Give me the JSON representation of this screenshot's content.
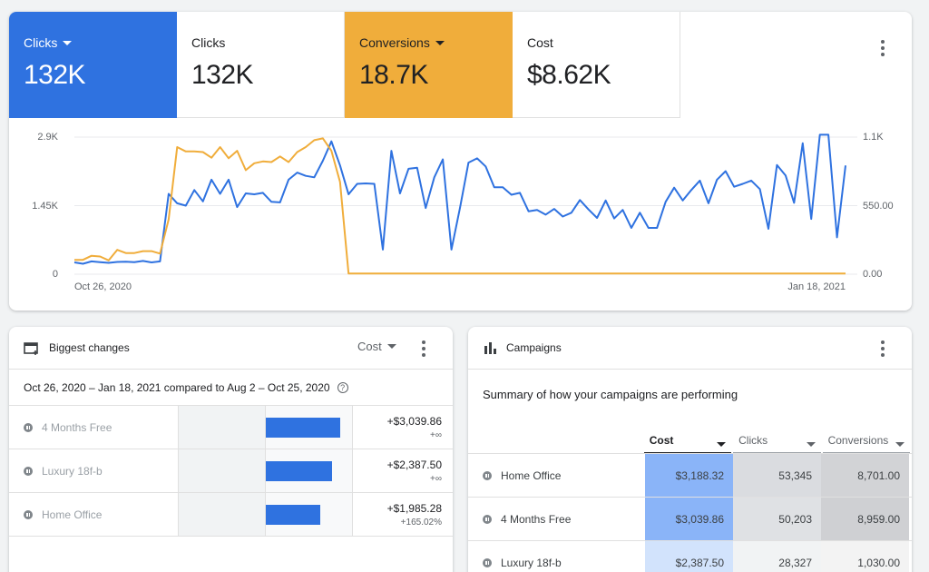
{
  "tiles": [
    {
      "label": "Clicks",
      "value": "132K",
      "dropdown": true,
      "style": "blue"
    },
    {
      "label": "Clicks",
      "value": "132K",
      "dropdown": false,
      "style": "plain"
    },
    {
      "label": "Conversions",
      "value": "18.7K",
      "dropdown": true,
      "style": "yellow"
    },
    {
      "label": "Cost",
      "value": "$8.62K",
      "dropdown": false,
      "style": "plain"
    }
  ],
  "colors": {
    "blue": "#2f72e0",
    "yellow": "#f0ad3b"
  },
  "chart_data": {
    "type": "line",
    "xlabels": [
      "Oct 26, 2020",
      "Jan 18, 2021"
    ],
    "y_left_ticks": [
      "2.9K",
      "1.45K",
      "0"
    ],
    "y_right_ticks": [
      "1.1K",
      "550.00",
      "0.00"
    ],
    "ylim_left": [
      0,
      2900
    ],
    "ylim_right": [
      0,
      1100
    ],
    "grid": true,
    "series": [
      {
        "color": "#2f72e0",
        "axis": "left",
        "values": [
          250,
          220,
          270,
          255,
          240,
          260,
          265,
          255,
          280,
          250,
          270,
          1700,
          1500,
          1450,
          1780,
          1540,
          2000,
          1700,
          2000,
          1420,
          1710,
          1690,
          1720,
          1530,
          1520,
          2000,
          2150,
          2080,
          2050,
          2400,
          2810,
          2300,
          1690,
          1910,
          1920,
          1910,
          520,
          2610,
          1710,
          2230,
          2250,
          1400,
          2050,
          2430,
          520,
          1400,
          2360,
          2450,
          2280,
          1840,
          1840,
          1680,
          1720,
          1330,
          1360,
          1260,
          1380,
          1220,
          1300,
          1570,
          1370,
          1190,
          1560,
          1180,
          1360,
          980,
          1300,
          980,
          980,
          1530,
          1830,
          1560,
          1780,
          1980,
          1500,
          2000,
          2180,
          1850,
          1910,
          1980,
          1800,
          960,
          2310,
          2090,
          1510,
          2770,
          1170,
          2950,
          2950,
          780,
          2300
        ]
      },
      {
        "color": "#f0ad3b",
        "axis": "right",
        "values": [
          115,
          115,
          148,
          142,
          111,
          195,
          170,
          170,
          185,
          185,
          165,
          440,
          1020,
          985,
          985,
          980,
          935,
          1020,
          930,
          990,
          835,
          890,
          905,
          900,
          945,
          900,
          980,
          1020,
          1075,
          1090,
          990,
          740,
          5,
          5,
          5,
          5,
          5,
          5,
          5,
          5,
          5,
          5,
          5,
          5,
          5,
          5,
          5,
          5,
          5,
          5,
          5,
          5,
          5,
          5,
          5,
          5,
          5,
          5,
          5,
          5,
          5,
          5,
          5,
          5,
          5,
          5,
          5,
          5,
          5,
          5,
          5,
          5,
          5,
          5,
          5,
          5,
          5,
          5,
          5,
          5,
          5,
          5,
          5,
          5,
          5,
          5,
          5,
          5,
          5,
          5,
          5
        ]
      }
    ]
  },
  "biggest_changes": {
    "title": "Biggest changes",
    "sort_label": "Cost",
    "date_range": "Oct 26, 2020 – Jan 18, 2021 compared to Aug 2 – Oct 25, 2020",
    "help_glyph": "?",
    "rows": [
      {
        "name": "4 Months Free",
        "change": "+$3,039.86",
        "pct": "+∞",
        "fraction": 0.85
      },
      {
        "name": "Luxury 18f-b",
        "change": "+$2,387.50",
        "pct": "+∞",
        "fraction": 0.76
      },
      {
        "name": "Home Office",
        "change": "+$1,985.28",
        "pct": "+165.02%",
        "fraction": 0.63
      }
    ]
  },
  "campaigns": {
    "title": "Campaigns",
    "summary": "Summary of how your campaigns are performing",
    "columns": [
      "Cost",
      "Clicks",
      "Conversions"
    ],
    "rows": [
      {
        "name": "Home Office",
        "cost": "$3,188.32",
        "clicks": "53,345",
        "conversions": "8,701.00",
        "cost_bg": "#8ab4f8",
        "clicks_bg": "#dadce0",
        "conv_bg": "#d2d3d6"
      },
      {
        "name": "4 Months Free",
        "cost": "$3,039.86",
        "clicks": "50,203",
        "conversions": "8,959.00",
        "cost_bg": "#8ab4f8",
        "clicks_bg": "#dfe1e4",
        "conv_bg": "#cfd0d3"
      },
      {
        "name": "Luxury 18f-b",
        "cost": "$2,387.50",
        "clicks": "28,327",
        "conversions": "1,030.00",
        "cost_bg": "#d2e3fc",
        "clicks_bg": "#f1f3f4",
        "conv_bg": "#f3f3f3"
      }
    ]
  }
}
